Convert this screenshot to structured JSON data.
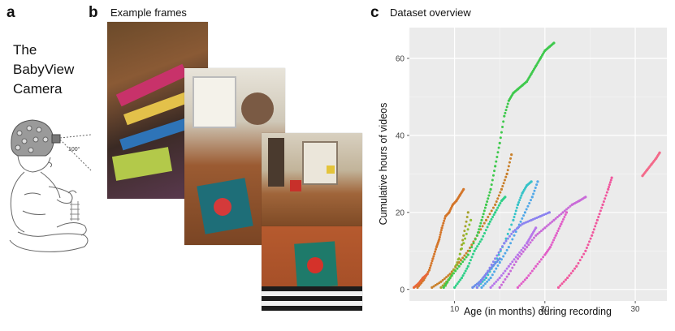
{
  "panel_a": {
    "letter": "a",
    "title_lines": [
      "The",
      "BabyView",
      "Camera"
    ],
    "angle_label": "100°"
  },
  "panel_b": {
    "letter": "b",
    "title": "Example frames"
  },
  "panel_c": {
    "letter": "c",
    "title": "Dataset overview"
  },
  "chart_data": {
    "type": "scatter",
    "xlabel": "Age (in months) during recording",
    "ylabel": "Cumulative hours of videos",
    "xlim": [
      5,
      33.5
    ],
    "ylim": [
      -3,
      68
    ],
    "xticks": [
      10,
      20,
      30
    ],
    "yticks": [
      0,
      20,
      40,
      60
    ],
    "grid": true,
    "series": [
      {
        "color": "#d4762a",
        "x": [
          5.9,
          6.6,
          7.2,
          7.6,
          8.0,
          8.3,
          8.6,
          9.0,
          9.4,
          9.8,
          10.2,
          10.6,
          11.0
        ],
        "y": [
          0.5,
          2.5,
          5,
          8,
          11,
          13,
          16,
          19,
          20,
          22,
          23,
          24.5,
          26
        ]
      },
      {
        "color": "#e8683a",
        "x": [
          5.5,
          6.0,
          6.5,
          7.0
        ],
        "y": [
          0.5,
          1.5,
          3,
          4
        ]
      },
      {
        "color": "#c9802b",
        "x": [
          7.5,
          8.5,
          9.5,
          10.5,
          11.5,
          12.5,
          13.5,
          14.5,
          15.2,
          15.8,
          16.3
        ],
        "y": [
          0.5,
          2,
          4,
          7,
          10,
          14,
          18,
          22,
          26,
          30,
          35
        ]
      },
      {
        "color": "#a6a32c",
        "x": [
          8.5,
          9.5,
          10.5,
          11.0,
          11.5
        ],
        "y": [
          0.5,
          3,
          8,
          14,
          20
        ]
      },
      {
        "color": "#8cbf2e",
        "x": [
          9.0,
          10.0,
          11.0,
          11.8
        ],
        "y": [
          1,
          5,
          12,
          18
        ]
      },
      {
        "color": "#3fc94d",
        "x": [
          8.8,
          9.5,
          10.5,
          11.5,
          12.5,
          13.0,
          13.5,
          14.0,
          14.5,
          15.0,
          15.5,
          16.0,
          16.5,
          17.0,
          17.5,
          18.0,
          18.5,
          19.0,
          19.5,
          20.0,
          20.5,
          21.0
        ],
        "y": [
          0.5,
          3,
          6,
          9,
          14,
          18,
          22,
          26,
          32,
          38,
          45,
          49,
          51,
          52,
          53,
          54,
          56,
          58,
          60,
          62,
          63,
          64
        ]
      },
      {
        "color": "#2fd088",
        "x": [
          10.0,
          10.8,
          11.5,
          12.2,
          13.0,
          13.8,
          14.5,
          15.2,
          15.6
        ],
        "y": [
          0.5,
          3,
          6,
          10,
          13,
          17,
          20,
          23,
          24
        ]
      },
      {
        "color": "#36c3c8",
        "x": [
          12.5,
          13.5,
          14.5,
          15.5,
          16.5,
          17.0,
          17.5,
          18.0,
          18.5
        ],
        "y": [
          0.5,
          3,
          7,
          12,
          18,
          22,
          25,
          27,
          28
        ]
      },
      {
        "color": "#52a8e8",
        "x": [
          13.0,
          14.0,
          15.0,
          16.0,
          17.0,
          17.8,
          18.6,
          19.2
        ],
        "y": [
          0.5,
          3,
          7,
          11,
          16,
          20,
          24,
          28
        ]
      },
      {
        "color": "#6a8ee8",
        "x": [
          12.0,
          12.8,
          13.5,
          14.2,
          15.0
        ],
        "y": [
          0.5,
          2,
          4,
          6,
          8
        ]
      },
      {
        "color": "#8b82f0",
        "x": [
          12.5,
          13.5,
          14.5,
          15.5,
          16.5,
          17.5,
          18.5,
          19.5,
          20.5
        ],
        "y": [
          0.5,
          4,
          8,
          12,
          15,
          17,
          18,
          19,
          20
        ]
      },
      {
        "color": "#b776ea",
        "x": [
          14.0,
          15.0,
          16.0,
          17.0,
          18.0,
          18.5,
          19.0
        ],
        "y": [
          0.5,
          3,
          6,
          9,
          12,
          14,
          16
        ]
      },
      {
        "color": "#c96bd8",
        "x": [
          15.0,
          16.0,
          17.0,
          18.0,
          19.0,
          20.0,
          21.0,
          22.0,
          23.0,
          23.8,
          24.5
        ],
        "y": [
          0.5,
          4,
          8,
          11,
          14,
          16,
          18,
          20,
          22,
          23,
          24
        ]
      },
      {
        "color": "#e15fc8",
        "x": [
          17.0,
          18.0,
          19.0,
          20.0,
          20.6,
          21.2,
          21.8,
          22.4
        ],
        "y": [
          0.5,
          3,
          6,
          9,
          11,
          14,
          17,
          20
        ]
      },
      {
        "color": "#f0589e",
        "x": [
          21.5,
          22.5,
          23.5,
          24.5,
          25.2,
          25.8,
          26.4,
          27.0,
          27.4
        ],
        "y": [
          0.5,
          3,
          6,
          10,
          14,
          18,
          22,
          26,
          29
        ]
      },
      {
        "color": "#f36a8a",
        "x": [
          30.8,
          31.3,
          31.8,
          32.3,
          32.7
        ],
        "y": [
          29.5,
          31,
          32.5,
          34,
          35.5
        ]
      }
    ]
  }
}
